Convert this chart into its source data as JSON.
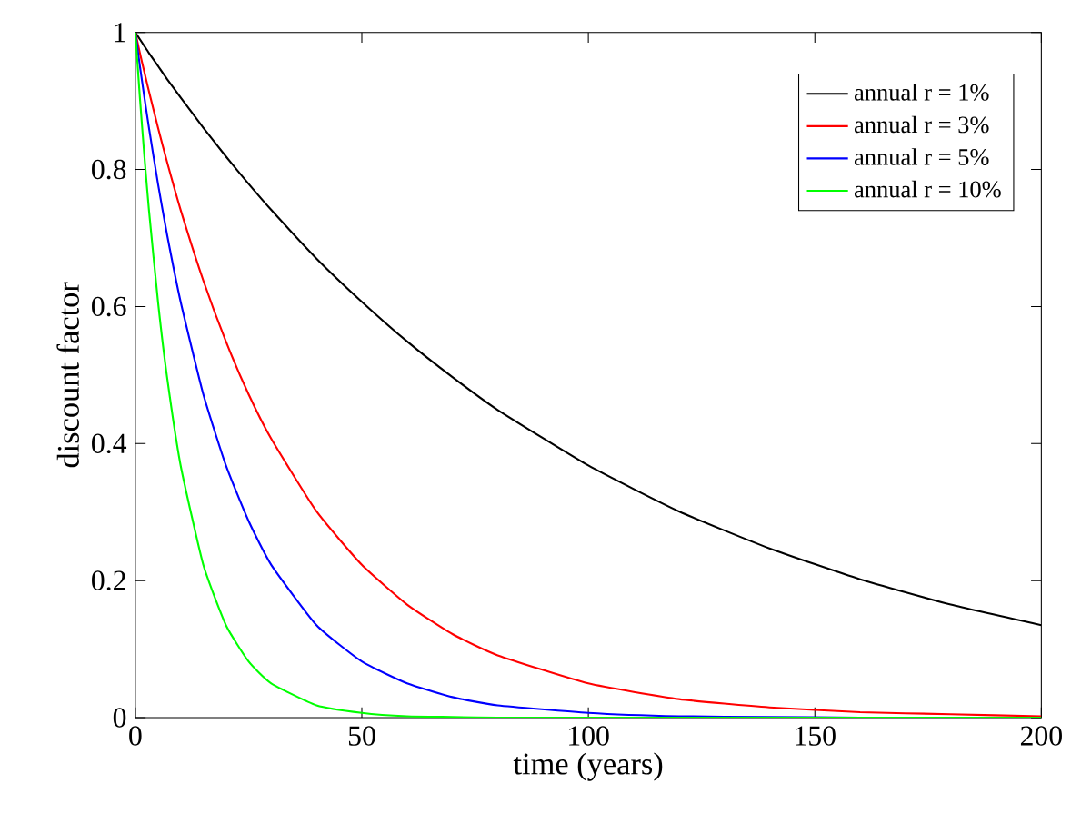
{
  "chart_data": {
    "type": "line",
    "xlabel": "time (years)",
    "ylabel": "discount factor",
    "x": [
      0,
      1,
      2,
      3,
      5,
      7,
      10,
      15,
      20,
      25,
      30,
      40,
      50,
      60,
      70,
      80,
      100,
      120,
      140,
      160,
      180,
      200
    ],
    "series": [
      {
        "name": "annual r = 1%",
        "color": "#000000",
        "values": [
          1,
          0.99,
          0.98,
          0.97,
          0.951,
          0.932,
          0.905,
          0.861,
          0.819,
          0.779,
          0.741,
          0.67,
          0.607,
          0.549,
          0.497,
          0.449,
          0.368,
          0.301,
          0.247,
          0.202,
          0.165,
          0.135
        ]
      },
      {
        "name": "annual r = 3%",
        "color": "#ff0000",
        "values": [
          1,
          0.97,
          0.942,
          0.914,
          0.861,
          0.811,
          0.741,
          0.638,
          0.549,
          0.472,
          0.407,
          0.301,
          0.223,
          0.165,
          0.122,
          0.091,
          0.05,
          0.027,
          0.015,
          0.008,
          0.005,
          0.002
        ]
      },
      {
        "name": "annual r = 5%",
        "color": "#0000ff",
        "values": [
          1,
          0.951,
          0.905,
          0.861,
          0.779,
          0.705,
          0.607,
          0.472,
          0.368,
          0.287,
          0.223,
          0.135,
          0.082,
          0.05,
          0.03,
          0.018,
          0.007,
          0.002,
          0.001,
          0,
          null,
          null
        ]
      },
      {
        "name": "annual r = 10%",
        "color": "#00ff00",
        "values": [
          1,
          0.905,
          0.819,
          0.741,
          0.607,
          0.497,
          0.368,
          0.223,
          0.135,
          0.082,
          0.05,
          0.018,
          0.007,
          0.002,
          0.001,
          0,
          0,
          0,
          0,
          0,
          0,
          0
        ]
      }
    ],
    "xlim": [
      0,
      200
    ],
    "ylim": [
      0,
      1
    ],
    "xticks": [
      0,
      50,
      100,
      150,
      200
    ],
    "yticks": [
      0,
      0.2,
      0.4,
      0.6,
      0.8,
      1
    ],
    "grid": false,
    "legend": "top right",
    "marker": "none",
    "line_style": "solid"
  }
}
